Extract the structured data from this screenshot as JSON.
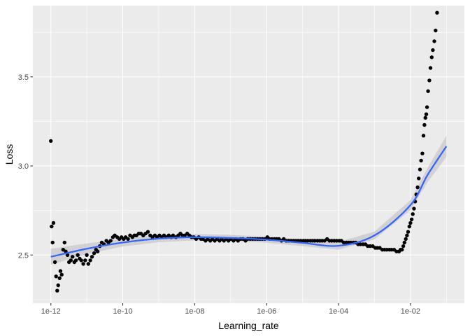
{
  "chart_data": {
    "type": "scatter",
    "title": "",
    "xlabel": "Learning_rate",
    "ylabel": "Loss",
    "x_scale": "log10",
    "xlim": [
      1e-12,
      0.1
    ],
    "ylim": [
      2.23,
      3.9
    ],
    "grid": true,
    "x_ticks": [
      {
        "value": 1e-12,
        "label": "1e-12"
      },
      {
        "value": 1e-10,
        "label": "1e-10"
      },
      {
        "value": 1e-08,
        "label": "1e-08"
      },
      {
        "value": 1e-06,
        "label": "1e-06"
      },
      {
        "value": 0.0001,
        "label": "1e-04"
      },
      {
        "value": 0.01,
        "label": "1e-02"
      }
    ],
    "y_ticks": [
      {
        "value": 2.5,
        "label": "2.5"
      },
      {
        "value": 3.0,
        "label": "3.0"
      },
      {
        "value": 3.5,
        "label": "3.5"
      }
    ],
    "points": [
      [
        1e-12,
        3.14
      ],
      [
        1.05e-12,
        2.66
      ],
      [
        1.12e-12,
        2.57
      ],
      [
        1.18e-12,
        2.68
      ],
      [
        1.3e-12,
        2.46
      ],
      [
        1.4e-12,
        2.38
      ],
      [
        1.5e-12,
        2.3
      ],
      [
        1.6e-12,
        2.33
      ],
      [
        1.75e-12,
        2.37
      ],
      [
        1.85e-12,
        2.41
      ],
      [
        2e-12,
        2.39
      ],
      [
        2.2e-12,
        2.53
      ],
      [
        2.4e-12,
        2.57
      ],
      [
        2.6e-12,
        2.52
      ],
      [
        2.9e-12,
        2.5
      ],
      [
        3.2e-12,
        2.46
      ],
      [
        3.6e-12,
        2.47
      ],
      [
        4e-12,
        2.49
      ],
      [
        4.5e-12,
        2.46
      ],
      [
        5e-12,
        2.47
      ],
      [
        5.6e-12,
        2.5
      ],
      [
        6.3e-12,
        2.48
      ],
      [
        7e-12,
        2.47
      ],
      [
        8e-12,
        2.45
      ],
      [
        9e-12,
        2.47
      ],
      [
        1e-11,
        2.5
      ],
      [
        1.1e-11,
        2.45
      ],
      [
        1.25e-11,
        2.47
      ],
      [
        1.4e-11,
        2.49
      ],
      [
        1.6e-11,
        2.51
      ],
      [
        1.8e-11,
        2.53
      ],
      [
        2e-11,
        2.52
      ],
      [
        2.3e-11,
        2.55
      ],
      [
        2.6e-11,
        2.57
      ],
      [
        3e-11,
        2.56
      ],
      [
        3.5e-11,
        2.58
      ],
      [
        4e-11,
        2.57
      ],
      [
        4.6e-11,
        2.58
      ],
      [
        5.3e-11,
        2.6
      ],
      [
        6e-11,
        2.61
      ],
      [
        7e-11,
        2.6
      ],
      [
        8e-11,
        2.59
      ],
      [
        9.2e-11,
        2.6
      ],
      [
        1.06e-10,
        2.59
      ],
      [
        1.2e-10,
        2.6
      ],
      [
        1.4e-10,
        2.59
      ],
      [
        1.6e-10,
        2.61
      ],
      [
        1.85e-10,
        2.6
      ],
      [
        2.1e-10,
        2.61
      ],
      [
        2.4e-10,
        2.61
      ],
      [
        2.8e-10,
        2.62
      ],
      [
        3.2e-10,
        2.62
      ],
      [
        3.7e-10,
        2.61
      ],
      [
        4.3e-10,
        2.62
      ],
      [
        5e-10,
        2.63
      ],
      [
        5.8e-10,
        2.61
      ],
      [
        6.7e-10,
        2.6
      ],
      [
        7.8e-10,
        2.61
      ],
      [
        9e-10,
        2.6
      ],
      [
        1.05e-09,
        2.61
      ],
      [
        1.2e-09,
        2.6
      ],
      [
        1.4e-09,
        2.61
      ],
      [
        1.6e-09,
        2.6
      ],
      [
        1.9e-09,
        2.61
      ],
      [
        2.2e-09,
        2.6
      ],
      [
        2.5e-09,
        2.61
      ],
      [
        3e-09,
        2.6
      ],
      [
        3.5e-09,
        2.61
      ],
      [
        4e-09,
        2.62
      ],
      [
        4.6e-09,
        2.61
      ],
      [
        5.3e-09,
        2.61
      ],
      [
        6.2e-09,
        2.62
      ],
      [
        7.1e-09,
        2.61
      ],
      [
        8.2e-09,
        2.6
      ],
      [
        9.5e-09,
        2.6
      ],
      [
        1.1e-08,
        2.59
      ],
      [
        1.3e-08,
        2.6
      ],
      [
        1.5e-08,
        2.59
      ],
      [
        1.7e-08,
        2.59
      ],
      [
        2e-08,
        2.58
      ],
      [
        2.3e-08,
        2.59
      ],
      [
        2.7e-08,
        2.58
      ],
      [
        3.1e-08,
        2.59
      ],
      [
        3.6e-08,
        2.58
      ],
      [
        4.2e-08,
        2.59
      ],
      [
        4.9e-08,
        2.58
      ],
      [
        5.6e-08,
        2.59
      ],
      [
        6.5e-08,
        2.58
      ],
      [
        7.5e-08,
        2.59
      ],
      [
        8.7e-08,
        2.58
      ],
      [
        1e-07,
        2.59
      ],
      [
        1.2e-07,
        2.58
      ],
      [
        1.4e-07,
        2.59
      ],
      [
        1.6e-07,
        2.58
      ],
      [
        1.9e-07,
        2.59
      ],
      [
        2.2e-07,
        2.59
      ],
      [
        2.6e-07,
        2.58
      ],
      [
        3e-07,
        2.59
      ],
      [
        3.5e-07,
        2.59
      ],
      [
        4.1e-07,
        2.59
      ],
      [
        4.8e-07,
        2.59
      ],
      [
        5.6e-07,
        2.59
      ],
      [
        6.5e-07,
        2.59
      ],
      [
        7.6e-07,
        2.59
      ],
      [
        8.9e-07,
        2.59
      ],
      [
        1.05e-06,
        2.6
      ],
      [
        1.2e-06,
        2.59
      ],
      [
        1.4e-06,
        2.59
      ],
      [
        1.65e-06,
        2.59
      ],
      [
        1.9e-06,
        2.59
      ],
      [
        2.2e-06,
        2.59
      ],
      [
        2.6e-06,
        2.58
      ],
      [
        3e-06,
        2.59
      ],
      [
        3.5e-06,
        2.58
      ],
      [
        4.1e-06,
        2.58
      ],
      [
        4.8e-06,
        2.58
      ],
      [
        5.6e-06,
        2.58
      ],
      [
        6.5e-06,
        2.58
      ],
      [
        7.6e-06,
        2.58
      ],
      [
        8.9e-06,
        2.58
      ],
      [
        1.05e-05,
        2.58
      ],
      [
        1.2e-05,
        2.58
      ],
      [
        1.4e-05,
        2.58
      ],
      [
        1.65e-05,
        2.58
      ],
      [
        1.9e-05,
        2.58
      ],
      [
        2.2e-05,
        2.58
      ],
      [
        2.6e-05,
        2.58
      ],
      [
        3e-05,
        2.58
      ],
      [
        3.5e-05,
        2.58
      ],
      [
        4.1e-05,
        2.58
      ],
      [
        4.8e-05,
        2.59
      ],
      [
        5.6e-05,
        2.58
      ],
      [
        6.5e-05,
        2.58
      ],
      [
        7.6e-05,
        2.58
      ],
      [
        8.9e-05,
        2.58
      ],
      [
        0.000105,
        2.58
      ],
      [
        0.00012,
        2.58
      ],
      [
        0.00014,
        2.57
      ],
      [
        0.000165,
        2.57
      ],
      [
        0.00019,
        2.57
      ],
      [
        0.00022,
        2.57
      ],
      [
        0.00026,
        2.57
      ],
      [
        0.0003,
        2.57
      ],
      [
        0.00035,
        2.56
      ],
      [
        0.00041,
        2.56
      ],
      [
        0.00048,
        2.56
      ],
      [
        0.00056,
        2.56
      ],
      [
        0.00065,
        2.55
      ],
      [
        0.00076,
        2.55
      ],
      [
        0.00089,
        2.55
      ],
      [
        0.00105,
        2.54
      ],
      [
        0.0012,
        2.54
      ],
      [
        0.0014,
        2.54
      ],
      [
        0.00165,
        2.53
      ],
      [
        0.0019,
        2.53
      ],
      [
        0.0022,
        2.53
      ],
      [
        0.0026,
        2.53
      ],
      [
        0.003,
        2.53
      ],
      [
        0.0035,
        2.53
      ],
      [
        0.0041,
        2.52
      ],
      [
        0.0048,
        2.52
      ],
      [
        0.0053,
        2.53
      ],
      [
        0.0058,
        2.53
      ],
      [
        0.0063,
        2.55
      ],
      [
        0.0068,
        2.57
      ],
      [
        0.0074,
        2.59
      ],
      [
        0.008,
        2.61
      ],
      [
        0.0086,
        2.63
      ],
      [
        0.0093,
        2.66
      ],
      [
        0.01,
        2.68
      ],
      [
        0.0108,
        2.7
      ],
      [
        0.0116,
        2.73
      ],
      [
        0.0125,
        2.76
      ],
      [
        0.0135,
        2.8
      ],
      [
        0.0146,
        2.84
      ],
      [
        0.0158,
        2.88
      ],
      [
        0.017,
        2.93
      ],
      [
        0.0184,
        2.98
      ],
      [
        0.0198,
        3.03
      ],
      [
        0.0214,
        3.07
      ],
      [
        0.023,
        3.17
      ],
      [
        0.0245,
        3.23
      ],
      [
        0.026,
        3.27
      ],
      [
        0.0275,
        3.29
      ],
      [
        0.029,
        3.33
      ],
      [
        0.031,
        3.42
      ],
      [
        0.0335,
        3.48
      ],
      [
        0.036,
        3.55
      ],
      [
        0.039,
        3.61
      ],
      [
        0.042,
        3.65
      ],
      [
        0.046,
        3.7
      ],
      [
        0.05,
        3.76
      ],
      [
        0.055,
        3.86
      ]
    ],
    "smooth": [
      [
        1e-12,
        2.49
      ],
      [
        1e-11,
        2.535
      ],
      [
        1e-10,
        2.57
      ],
      [
        1e-09,
        2.592
      ],
      [
        1e-08,
        2.6
      ],
      [
        1e-07,
        2.596
      ],
      [
        1e-06,
        2.586
      ],
      [
        1e-05,
        2.568
      ],
      [
        0.0001,
        2.552
      ],
      [
        0.001,
        2.61
      ],
      [
        0.01,
        2.78
      ],
      [
        0.03,
        2.95
      ],
      [
        0.1,
        3.11
      ]
    ],
    "smooth_ci": [
      [
        1e-12,
        2.445,
        2.535
      ],
      [
        1e-11,
        2.505,
        2.565
      ],
      [
        1e-10,
        2.548,
        2.592
      ],
      [
        1e-09,
        2.572,
        2.612
      ],
      [
        1e-08,
        2.582,
        2.618
      ],
      [
        1e-07,
        2.579,
        2.613
      ],
      [
        1e-06,
        2.569,
        2.603
      ],
      [
        1e-05,
        2.55,
        2.586
      ],
      [
        0.0001,
        2.53,
        2.574
      ],
      [
        0.001,
        2.588,
        2.632
      ],
      [
        0.01,
        2.752,
        2.808
      ],
      [
        0.03,
        2.91,
        2.99
      ],
      [
        0.1,
        3.05,
        3.17
      ]
    ],
    "colors": {
      "panel": "#ebebeb",
      "grid_major": "#ffffff",
      "point": "#000000",
      "smooth": "#3366ff",
      "ribbon": "#bfbfbf"
    }
  }
}
